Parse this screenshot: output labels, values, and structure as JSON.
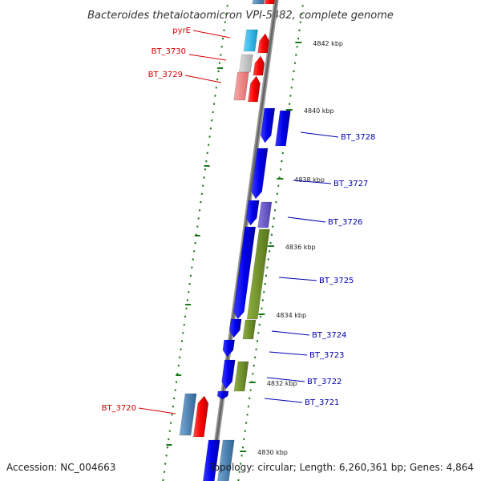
{
  "title": "Bacteroides thetaiotaomicron VPI-5482, complete genome",
  "footer": {
    "accession": "Accession: NC_004663",
    "summary": "Topology: circular; Length: 6,260,361 bp; Genes: 4,864"
  },
  "ruler": {
    "major_ticks": [
      {
        "label": "4842 kbp"
      },
      {
        "label": "4840 kbp"
      },
      {
        "label": "4838 kbp"
      },
      {
        "label": "4836 kbp"
      },
      {
        "label": "4834 kbp"
      },
      {
        "label": "4832 kbp"
      },
      {
        "label": "4830 kbp"
      }
    ]
  },
  "genes": [
    {
      "label": "pyrE",
      "color": "#d40000"
    },
    {
      "label": "BT_3730",
      "color": "#d40000"
    },
    {
      "label": "BT_3729",
      "color": "#d40000"
    },
    {
      "label": "BT_3728",
      "color": "#0000b0"
    },
    {
      "label": "BT_3727",
      "color": "#0000b0"
    },
    {
      "label": "BT_3726",
      "color": "#0000b0"
    },
    {
      "label": "BT_3725",
      "color": "#0000b0"
    },
    {
      "label": "BT_3724",
      "color": "#0000b0"
    },
    {
      "label": "BT_3723",
      "color": "#0000b0"
    },
    {
      "label": "BT_3722",
      "color": "#0000b0"
    },
    {
      "label": "BT_3721",
      "color": "#0000b0"
    },
    {
      "label": "BT_3720",
      "color": "#d40000"
    }
  ],
  "colors": {
    "forward_strand": "#ff0000",
    "reverse_strand": "#0000ee",
    "cog_cyan": "#22bbee",
    "cog_grey": "#bbbbbb",
    "cog_pink": "#f08080",
    "cog_green": "#6b8e23",
    "cog_purple": "#6a5acd",
    "cog_steelblue": "#4682b4",
    "backbone": "#777777",
    "tick": "#1a7a1a"
  }
}
